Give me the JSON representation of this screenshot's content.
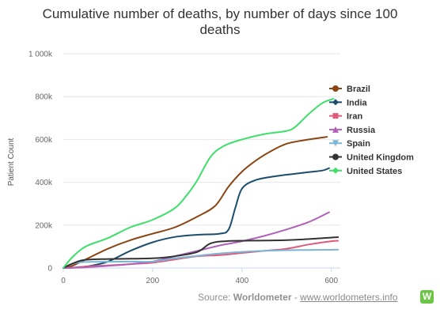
{
  "chart_data": {
    "type": "line",
    "title": "Cumulative number of deaths, by number of days since 100 deaths",
    "title_lines": [
      "Cumulative number of deaths, by number of days since 100",
      "deaths"
    ],
    "xlabel": "",
    "ylabel": "Patient Count",
    "xlim": [
      0,
      620
    ],
    "ylim": [
      0,
      1000000
    ],
    "x_ticks": [
      0,
      200,
      400,
      600
    ],
    "x_tick_labels": [
      "0",
      "200",
      "400",
      "600"
    ],
    "y_ticks": [
      0,
      200000,
      400000,
      600000,
      800000,
      1000000
    ],
    "y_tick_labels": [
      "0",
      "200k",
      "400k",
      "600k",
      "800k",
      "1 000k"
    ],
    "grid": "horizontal",
    "legend": "right",
    "series": [
      {
        "name": "Brazil",
        "color": "#8b4513",
        "marker": "circle",
        "x": [
          0,
          20,
          50,
          100,
          150,
          200,
          250,
          300,
          340,
          370,
          400,
          430,
          460,
          500,
          550,
          590
        ],
        "y": [
          0,
          10000,
          40000,
          90000,
          130000,
          160000,
          190000,
          240000,
          290000,
          380000,
          450000,
          500000,
          540000,
          580000,
          600000,
          612000
        ]
      },
      {
        "name": "India",
        "color": "#1a4d6e",
        "marker": "diamond",
        "x": [
          0,
          30,
          60,
          100,
          150,
          200,
          250,
          300,
          350,
          370,
          385,
          400,
          430,
          480,
          540,
          580,
          595
        ],
        "y": [
          0,
          3000,
          10000,
          30000,
          80000,
          120000,
          145000,
          155000,
          160000,
          180000,
          280000,
          370000,
          410000,
          430000,
          445000,
          455000,
          466000
        ]
      },
      {
        "name": "Iran",
        "color": "#e05a7a",
        "marker": "square",
        "x": [
          0,
          30,
          60,
          100,
          150,
          200,
          250,
          300,
          350,
          400,
          450,
          500,
          550,
          600,
          615
        ],
        "y": [
          0,
          3000,
          8000,
          12000,
          18000,
          25000,
          40000,
          55000,
          60000,
          70000,
          80000,
          90000,
          110000,
          125000,
          127000
        ]
      },
      {
        "name": "Russia",
        "color": "#b061b9",
        "marker": "triangle",
        "x": [
          0,
          50,
          100,
          150,
          200,
          250,
          300,
          350,
          400,
          450,
          500,
          550,
          595
        ],
        "y": [
          0,
          3000,
          10000,
          18000,
          30000,
          55000,
          80000,
          105000,
          125000,
          150000,
          180000,
          215000,
          260000
        ]
      },
      {
        "name": "Spain",
        "color": "#7bb5d6",
        "marker": "triangle-down",
        "x": [
          0,
          20,
          50,
          100,
          150,
          200,
          250,
          300,
          350,
          400,
          450,
          500,
          550,
          600,
          615
        ],
        "y": [
          0,
          20000,
          28000,
          29000,
          30000,
          30000,
          45000,
          57000,
          68000,
          75000,
          80000,
          83000,
          84000,
          85000,
          86000
        ]
      },
      {
        "name": "United Kingdom",
        "color": "#333333",
        "marker": "circle",
        "x": [
          0,
          20,
          40,
          60,
          100,
          150,
          200,
          250,
          300,
          330,
          370,
          450,
          500,
          550,
          600,
          615
        ],
        "y": [
          0,
          20000,
          35000,
          40000,
          42000,
          43000,
          45000,
          55000,
          75000,
          115000,
          126000,
          128000,
          130000,
          135000,
          142000,
          144000
        ]
      },
      {
        "name": "United States",
        "color": "#3ee06a",
        "marker": "diamond",
        "x": [
          0,
          20,
          50,
          100,
          150,
          200,
          250,
          280,
          300,
          330,
          360,
          400,
          450,
          500,
          520,
          550,
          580,
          605
        ],
        "y": [
          0,
          50000,
          100000,
          140000,
          190000,
          225000,
          280000,
          350000,
          410000,
          520000,
          570000,
          600000,
          625000,
          640000,
          660000,
          720000,
          770000,
          790000
        ]
      }
    ]
  },
  "source": {
    "prefix": "Source: ",
    "name": "Worldometer",
    "separator": " - ",
    "link": "www.worldometers.info",
    "logo_letter": "W"
  }
}
